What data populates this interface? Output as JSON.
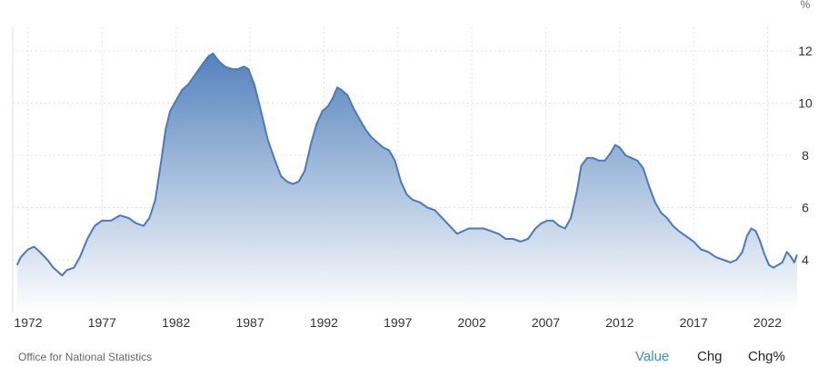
{
  "chart_data": {
    "type": "area",
    "title": "",
    "unit_label": "%",
    "xlabel": "",
    "ylabel": "",
    "x_ticks": [
      "1972",
      "1977",
      "1982",
      "1987",
      "1992",
      "1997",
      "2002",
      "2007",
      "2012",
      "2017",
      "2022"
    ],
    "y_ticks": [
      4,
      6,
      8,
      10,
      12
    ],
    "xlim": [
      1971.25,
      2024.0
    ],
    "ylim": [
      2,
      13
    ],
    "y_axis_side": "right",
    "grid": true,
    "series": [
      {
        "points": [
          [
            1971.25,
            3.8
          ],
          [
            1971.5,
            4.1
          ],
          [
            1972.0,
            4.4
          ],
          [
            1972.4,
            4.5
          ],
          [
            1972.8,
            4.3
          ],
          [
            1973.3,
            4.0
          ],
          [
            1973.7,
            3.7
          ],
          [
            1974.3,
            3.4
          ],
          [
            1974.6,
            3.6
          ],
          [
            1975.1,
            3.7
          ],
          [
            1975.5,
            4.1
          ],
          [
            1976.0,
            4.8
          ],
          [
            1976.5,
            5.3
          ],
          [
            1977.0,
            5.5
          ],
          [
            1977.6,
            5.5
          ],
          [
            1978.2,
            5.7
          ],
          [
            1978.8,
            5.6
          ],
          [
            1979.3,
            5.4
          ],
          [
            1979.8,
            5.3
          ],
          [
            1980.2,
            5.6
          ],
          [
            1980.6,
            6.3
          ],
          [
            1981.0,
            7.8
          ],
          [
            1981.3,
            9.0
          ],
          [
            1981.6,
            9.7
          ],
          [
            1982.0,
            10.1
          ],
          [
            1982.4,
            10.5
          ],
          [
            1982.8,
            10.7
          ],
          [
            1983.3,
            11.1
          ],
          [
            1983.8,
            11.5
          ],
          [
            1984.2,
            11.8
          ],
          [
            1984.5,
            11.9
          ],
          [
            1984.9,
            11.6
          ],
          [
            1985.3,
            11.4
          ],
          [
            1985.8,
            11.3
          ],
          [
            1986.2,
            11.3
          ],
          [
            1986.6,
            11.4
          ],
          [
            1986.9,
            11.3
          ],
          [
            1987.3,
            10.7
          ],
          [
            1987.7,
            9.8
          ],
          [
            1988.2,
            8.6
          ],
          [
            1988.7,
            7.8
          ],
          [
            1989.1,
            7.2
          ],
          [
            1989.5,
            7.0
          ],
          [
            1989.9,
            6.9
          ],
          [
            1990.3,
            7.0
          ],
          [
            1990.7,
            7.4
          ],
          [
            1991.1,
            8.4
          ],
          [
            1991.5,
            9.2
          ],
          [
            1991.9,
            9.7
          ],
          [
            1992.3,
            9.9
          ],
          [
            1992.6,
            10.2
          ],
          [
            1992.9,
            10.6
          ],
          [
            1993.2,
            10.5
          ],
          [
            1993.6,
            10.3
          ],
          [
            1994.0,
            9.8
          ],
          [
            1994.4,
            9.4
          ],
          [
            1994.8,
            9.0
          ],
          [
            1995.2,
            8.7
          ],
          [
            1995.6,
            8.5
          ],
          [
            1996.0,
            8.3
          ],
          [
            1996.4,
            8.2
          ],
          [
            1996.8,
            7.8
          ],
          [
            1997.2,
            7.0
          ],
          [
            1997.6,
            6.5
          ],
          [
            1998.0,
            6.3
          ],
          [
            1998.5,
            6.2
          ],
          [
            1999.0,
            6.0
          ],
          [
            1999.5,
            5.9
          ],
          [
            2000.0,
            5.6
          ],
          [
            2000.5,
            5.3
          ],
          [
            2001.0,
            5.0
          ],
          [
            2001.4,
            5.1
          ],
          [
            2001.8,
            5.2
          ],
          [
            2002.3,
            5.2
          ],
          [
            2002.8,
            5.2
          ],
          [
            2003.3,
            5.1
          ],
          [
            2003.8,
            5.0
          ],
          [
            2004.3,
            4.8
          ],
          [
            2004.8,
            4.8
          ],
          [
            2005.3,
            4.7
          ],
          [
            2005.8,
            4.8
          ],
          [
            2006.3,
            5.2
          ],
          [
            2006.7,
            5.4
          ],
          [
            2007.1,
            5.5
          ],
          [
            2007.5,
            5.5
          ],
          [
            2007.9,
            5.3
          ],
          [
            2008.3,
            5.2
          ],
          [
            2008.7,
            5.6
          ],
          [
            2009.1,
            6.6
          ],
          [
            2009.4,
            7.6
          ],
          [
            2009.8,
            7.9
          ],
          [
            2010.2,
            7.9
          ],
          [
            2010.6,
            7.8
          ],
          [
            2011.0,
            7.8
          ],
          [
            2011.4,
            8.1
          ],
          [
            2011.7,
            8.4
          ],
          [
            2012.0,
            8.3
          ],
          [
            2012.4,
            8.0
          ],
          [
            2012.8,
            7.9
          ],
          [
            2013.2,
            7.8
          ],
          [
            2013.6,
            7.5
          ],
          [
            2014.0,
            6.8
          ],
          [
            2014.4,
            6.2
          ],
          [
            2014.8,
            5.8
          ],
          [
            2015.2,
            5.6
          ],
          [
            2015.6,
            5.3
          ],
          [
            2016.0,
            5.1
          ],
          [
            2016.5,
            4.9
          ],
          [
            2017.0,
            4.7
          ],
          [
            2017.5,
            4.4
          ],
          [
            2018.0,
            4.3
          ],
          [
            2018.5,
            4.1
          ],
          [
            2019.0,
            4.0
          ],
          [
            2019.5,
            3.9
          ],
          [
            2019.9,
            4.0
          ],
          [
            2020.3,
            4.3
          ],
          [
            2020.6,
            4.9
          ],
          [
            2020.9,
            5.2
          ],
          [
            2021.2,
            5.1
          ],
          [
            2021.5,
            4.7
          ],
          [
            2021.8,
            4.2
          ],
          [
            2022.1,
            3.8
          ],
          [
            2022.4,
            3.7
          ],
          [
            2022.7,
            3.8
          ],
          [
            2023.0,
            3.9
          ],
          [
            2023.3,
            4.3
          ],
          [
            2023.6,
            4.1
          ],
          [
            2023.8,
            3.9
          ],
          [
            2024.0,
            4.2
          ]
        ]
      }
    ]
  },
  "source": "Office for National Statistics",
  "tabs": [
    {
      "label": "Value",
      "active": true
    },
    {
      "label": "Chg",
      "active": false
    },
    {
      "label": "Chg%",
      "active": false
    }
  ],
  "colors": {
    "line": "#4a7ab8",
    "fill_top": "#4a7ab8",
    "fill_bottom": "#ffffff",
    "grid": "#e0e0e0",
    "tick_text": "#333333",
    "active_tab": "#3b8cc4"
  }
}
